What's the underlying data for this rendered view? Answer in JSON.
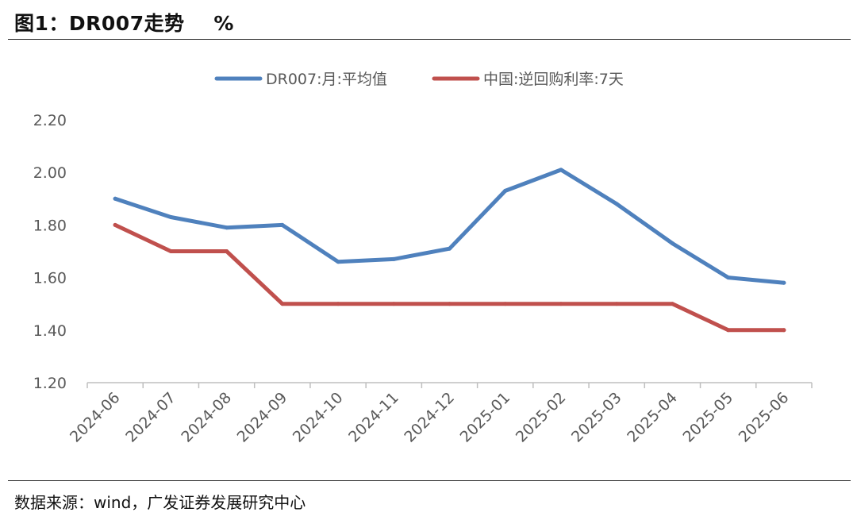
{
  "header": {
    "title": "图1：DR007走势    %"
  },
  "footer": {
    "source": "数据来源：wind，广发证券发展研究中心"
  },
  "colors": {
    "series_blue": "#4f81bd",
    "series_red": "#c0504d",
    "axis": "#bfbfbf",
    "text": "#595959"
  },
  "chart_data": {
    "type": "line",
    "x": [
      "2024-06",
      "2024-07",
      "2024-08",
      "2024-09",
      "2024-10",
      "2024-11",
      "2024-12",
      "2025-01",
      "2025-02",
      "2025-03",
      "2025-04",
      "2025-05",
      "2025-06"
    ],
    "series": [
      {
        "name": "DR007:月:平均值",
        "color": "#4f81bd",
        "values": [
          1.9,
          1.83,
          1.79,
          1.8,
          1.66,
          1.67,
          1.71,
          1.93,
          2.01,
          1.88,
          1.73,
          1.6,
          1.58
        ]
      },
      {
        "name": "中国:逆回购利率:7天",
        "color": "#c0504d",
        "values": [
          1.8,
          1.7,
          1.7,
          1.5,
          1.5,
          1.5,
          1.5,
          1.5,
          1.5,
          1.5,
          1.5,
          1.4,
          1.4
        ]
      }
    ],
    "yticks": [
      "1.20",
      "1.40",
      "1.60",
      "1.80",
      "2.00",
      "2.20"
    ],
    "ylim": [
      1.2,
      2.2
    ],
    "grid": false,
    "legend": "top-center",
    "xlabel": "",
    "ylabel": ""
  }
}
